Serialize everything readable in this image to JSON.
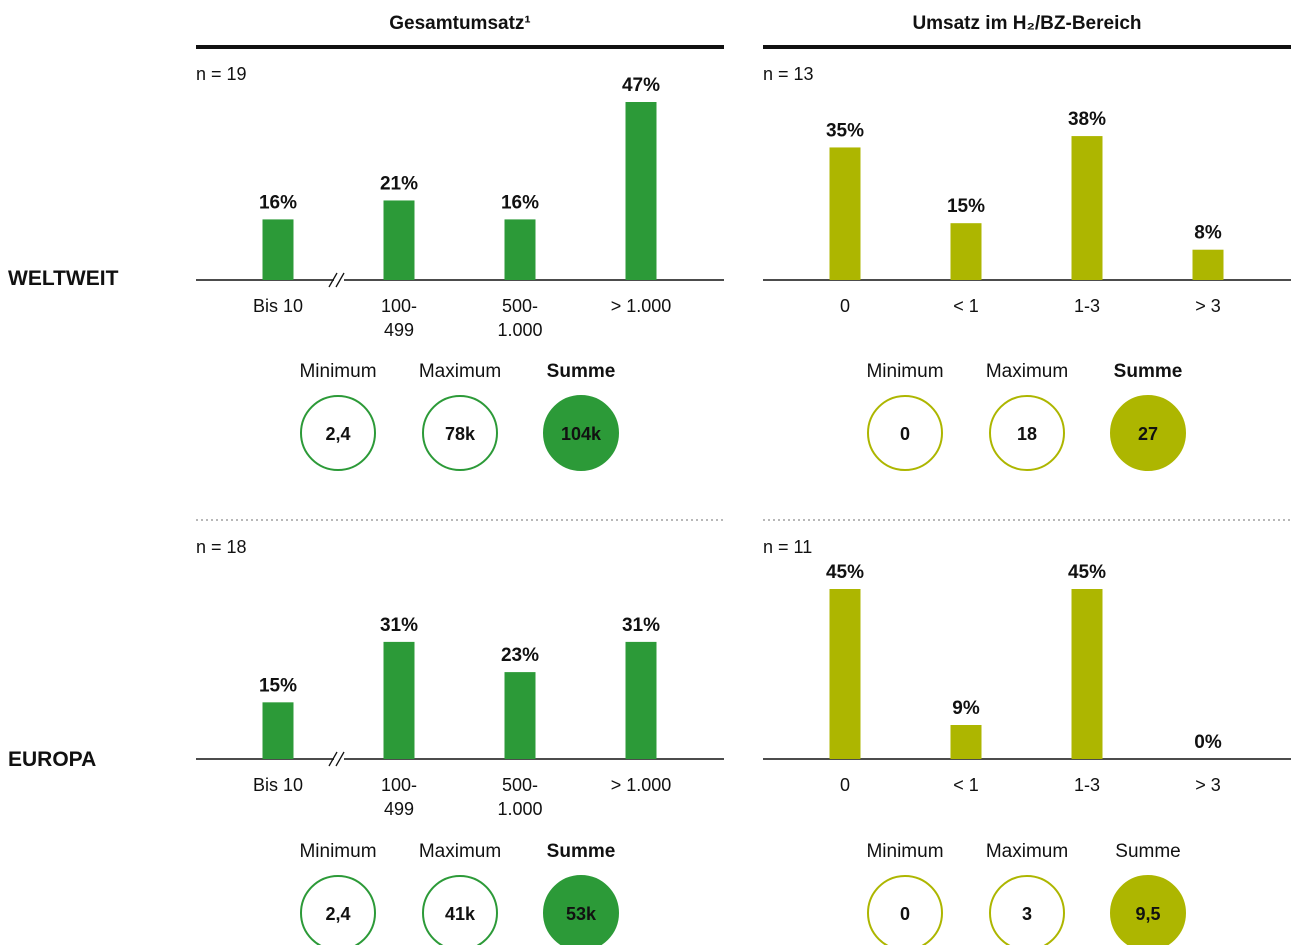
{
  "colors": {
    "total": "#2c9a38",
    "h2": "#adb600",
    "text": "#111111",
    "divider": "#b8b8b8"
  },
  "headers": {
    "total": "Gesamtumsatz¹",
    "h2": "Umsatz im H₂/BZ-Bereich"
  },
  "rows": [
    {
      "key": "welt",
      "label": "WELTWEIT"
    },
    {
      "key": "europa",
      "label": "EUROPA"
    }
  ],
  "stat_labels": [
    "Minimum",
    "Maximum",
    "Summe"
  ],
  "chart_data": [
    {
      "id": "welt-total",
      "type": "bar",
      "region": "WELTWEIT",
      "group": "total",
      "n": "n = 19",
      "categories": [
        "Bis 10",
        "100-\n499",
        "500-\n1.000",
        "> 1.000"
      ],
      "values": [
        16,
        21,
        16,
        47
      ],
      "labels": [
        "16%",
        "21%",
        "16%",
        "47%"
      ],
      "axis_break": true,
      "ylim": [
        0,
        47
      ],
      "stats": {
        "min": "2,4",
        "max": "78k",
        "sum": "104k",
        "sum_label_bold": true
      }
    },
    {
      "id": "welt-h2",
      "type": "bar",
      "region": "WELTWEIT",
      "group": "h2",
      "n": "n = 13",
      "categories": [
        "0",
        "< 1",
        "1-3",
        "> 3"
      ],
      "values": [
        35,
        15,
        38,
        8
      ],
      "labels": [
        "35%",
        "15%",
        "38%",
        "8%"
      ],
      "axis_break": false,
      "ylim": [
        0,
        47
      ],
      "stats": {
        "min": "0",
        "max": "18",
        "sum": "27",
        "sum_label_bold": true
      }
    },
    {
      "id": "europa-total",
      "type": "bar",
      "region": "EUROPA",
      "group": "total",
      "n": "n = 18",
      "categories": [
        "Bis 10",
        "100-\n499",
        "500-\n1.000",
        "> 1.000"
      ],
      "values": [
        15,
        31,
        23,
        31
      ],
      "labels": [
        "15%",
        "31%",
        "23%",
        "31%"
      ],
      "axis_break": true,
      "ylim": [
        0,
        45
      ],
      "stats": {
        "min": "2,4",
        "max": "41k",
        "sum": "53k",
        "sum_label_bold": true
      }
    },
    {
      "id": "europa-h2",
      "type": "bar",
      "region": "EUROPA",
      "group": "h2",
      "n": "n = 11",
      "categories": [
        "0",
        "< 1",
        "1-3",
        "> 3"
      ],
      "values": [
        45,
        9,
        45,
        0
      ],
      "labels": [
        "45%",
        "9%",
        "45%",
        "0%"
      ],
      "axis_break": false,
      "ylim": [
        0,
        45
      ],
      "stats": {
        "min": "0",
        "max": "3",
        "sum": "9,5",
        "sum_label_bold": false
      }
    }
  ]
}
